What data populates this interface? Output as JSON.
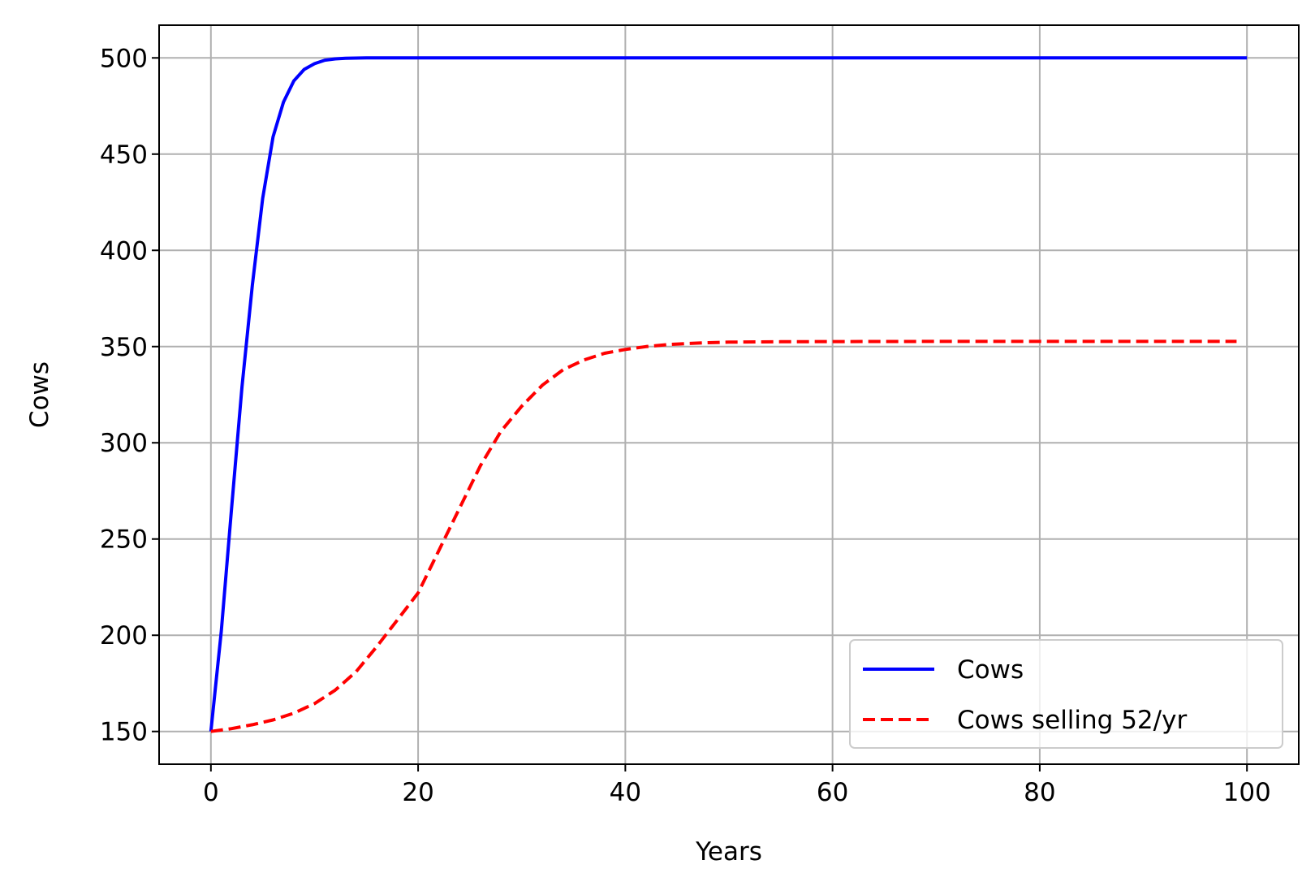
{
  "chart_data": {
    "type": "line",
    "title": "",
    "xlabel": "Years",
    "ylabel": "Cows",
    "xlim": [
      -5,
      105
    ],
    "ylim": [
      133,
      517
    ],
    "xticks": [
      0,
      20,
      40,
      60,
      80,
      100
    ],
    "yticks": [
      150,
      200,
      250,
      300,
      350,
      400,
      450,
      500
    ],
    "grid": true,
    "legend_position": "lower right",
    "series": [
      {
        "name": "Cows",
        "color": "#0000ff",
        "style": "solid",
        "x": [
          0,
          1,
          2,
          3,
          4,
          5,
          6,
          7,
          8,
          9,
          10,
          11,
          12,
          13,
          14,
          15,
          20,
          30,
          40,
          50,
          60,
          70,
          80,
          90,
          100
        ],
        "y": [
          150,
          202,
          266,
          329,
          382,
          427,
          459,
          477,
          488,
          494,
          497,
          498.8,
          499.5,
          499.8,
          499.9,
          500,
          500,
          500,
          500,
          500,
          500,
          500,
          500,
          500,
          500
        ]
      },
      {
        "name": "Cows selling 52/yr",
        "color": "#ff0000",
        "style": "dashed",
        "x": [
          0,
          2,
          4,
          6,
          8,
          10,
          12,
          14,
          16,
          18,
          20,
          22,
          24,
          26,
          28,
          30,
          32,
          34,
          36,
          38,
          40,
          42,
          44,
          46,
          48,
          50,
          55,
          60,
          70,
          80,
          90,
          99
        ],
        "y": [
          150,
          151.5,
          153.5,
          156,
          159.5,
          164.5,
          171.5,
          181,
          194,
          208,
          222,
          244,
          266,
          288,
          306,
          319,
          330,
          338,
          343,
          346.5,
          348.5,
          350,
          351,
          351.6,
          352,
          352.3,
          352.5,
          352.6,
          352.7,
          352.7,
          352.7,
          352.7
        ]
      }
    ]
  }
}
